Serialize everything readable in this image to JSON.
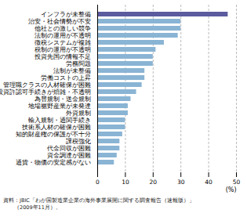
{
  "chart_data": {
    "type": "bar",
    "orientation": "horizontal",
    "categories": [
      "通貨・物価の安定感がない",
      "資金調達が困難",
      "代金回収が困難",
      "課税強化",
      "知的財産権の保護が不十分",
      "技術系人材の確保が困難",
      "輸入規制・通関手続き",
      "外資規制",
      "地場裾野産業が未発達",
      "為替規制・送金規制",
      "投資許認可手続きが煩雑・不透明",
      "管理職クラスの人材確保が困難",
      "労働コストの上昇",
      "法制が未整備",
      "労務問題",
      "投資先国の情報不足",
      "税制の運用が不透明",
      "徴税システムが複雑",
      "法制の運用が不透明",
      "他社との激しい競争",
      "治安・社会情勢が不安",
      "インフラが未整備"
    ],
    "values": [
      6,
      7,
      8,
      8,
      9,
      10,
      10,
      11,
      11,
      12,
      14,
      16,
      17,
      17,
      20,
      20,
      21,
      24,
      29,
      30,
      30,
      47
    ],
    "colors": [
      "#8ab4d4",
      "#8ab4d4",
      "#8ab4d4",
      "#8ab4d4",
      "#8ab4d4",
      "#8ab4d4",
      "#8ab4d4",
      "#8ab4d4",
      "#8ab4d4",
      "#8ab4d4",
      "#8ab4d4",
      "#8ab4d4",
      "#8ab4d4",
      "#8ab4d4",
      "#8ab4d4",
      "#8ab4d4",
      "#8ab4d4",
      "#8ab4d4",
      "#8ab4d4",
      "#8ab4d4",
      "#8ab4d4",
      "#5b5b9f"
    ],
    "xlim": [
      0,
      50
    ],
    "xticks": [
      0,
      10,
      20,
      30,
      40,
      50
    ],
    "xlabel": "(%)",
    "grid": true,
    "annotations": [
      "資料：JBIC「わが国製造業企業の海外事業展開に関する調査報告（速報版）」",
      "（2009年11月）。"
    ]
  }
}
